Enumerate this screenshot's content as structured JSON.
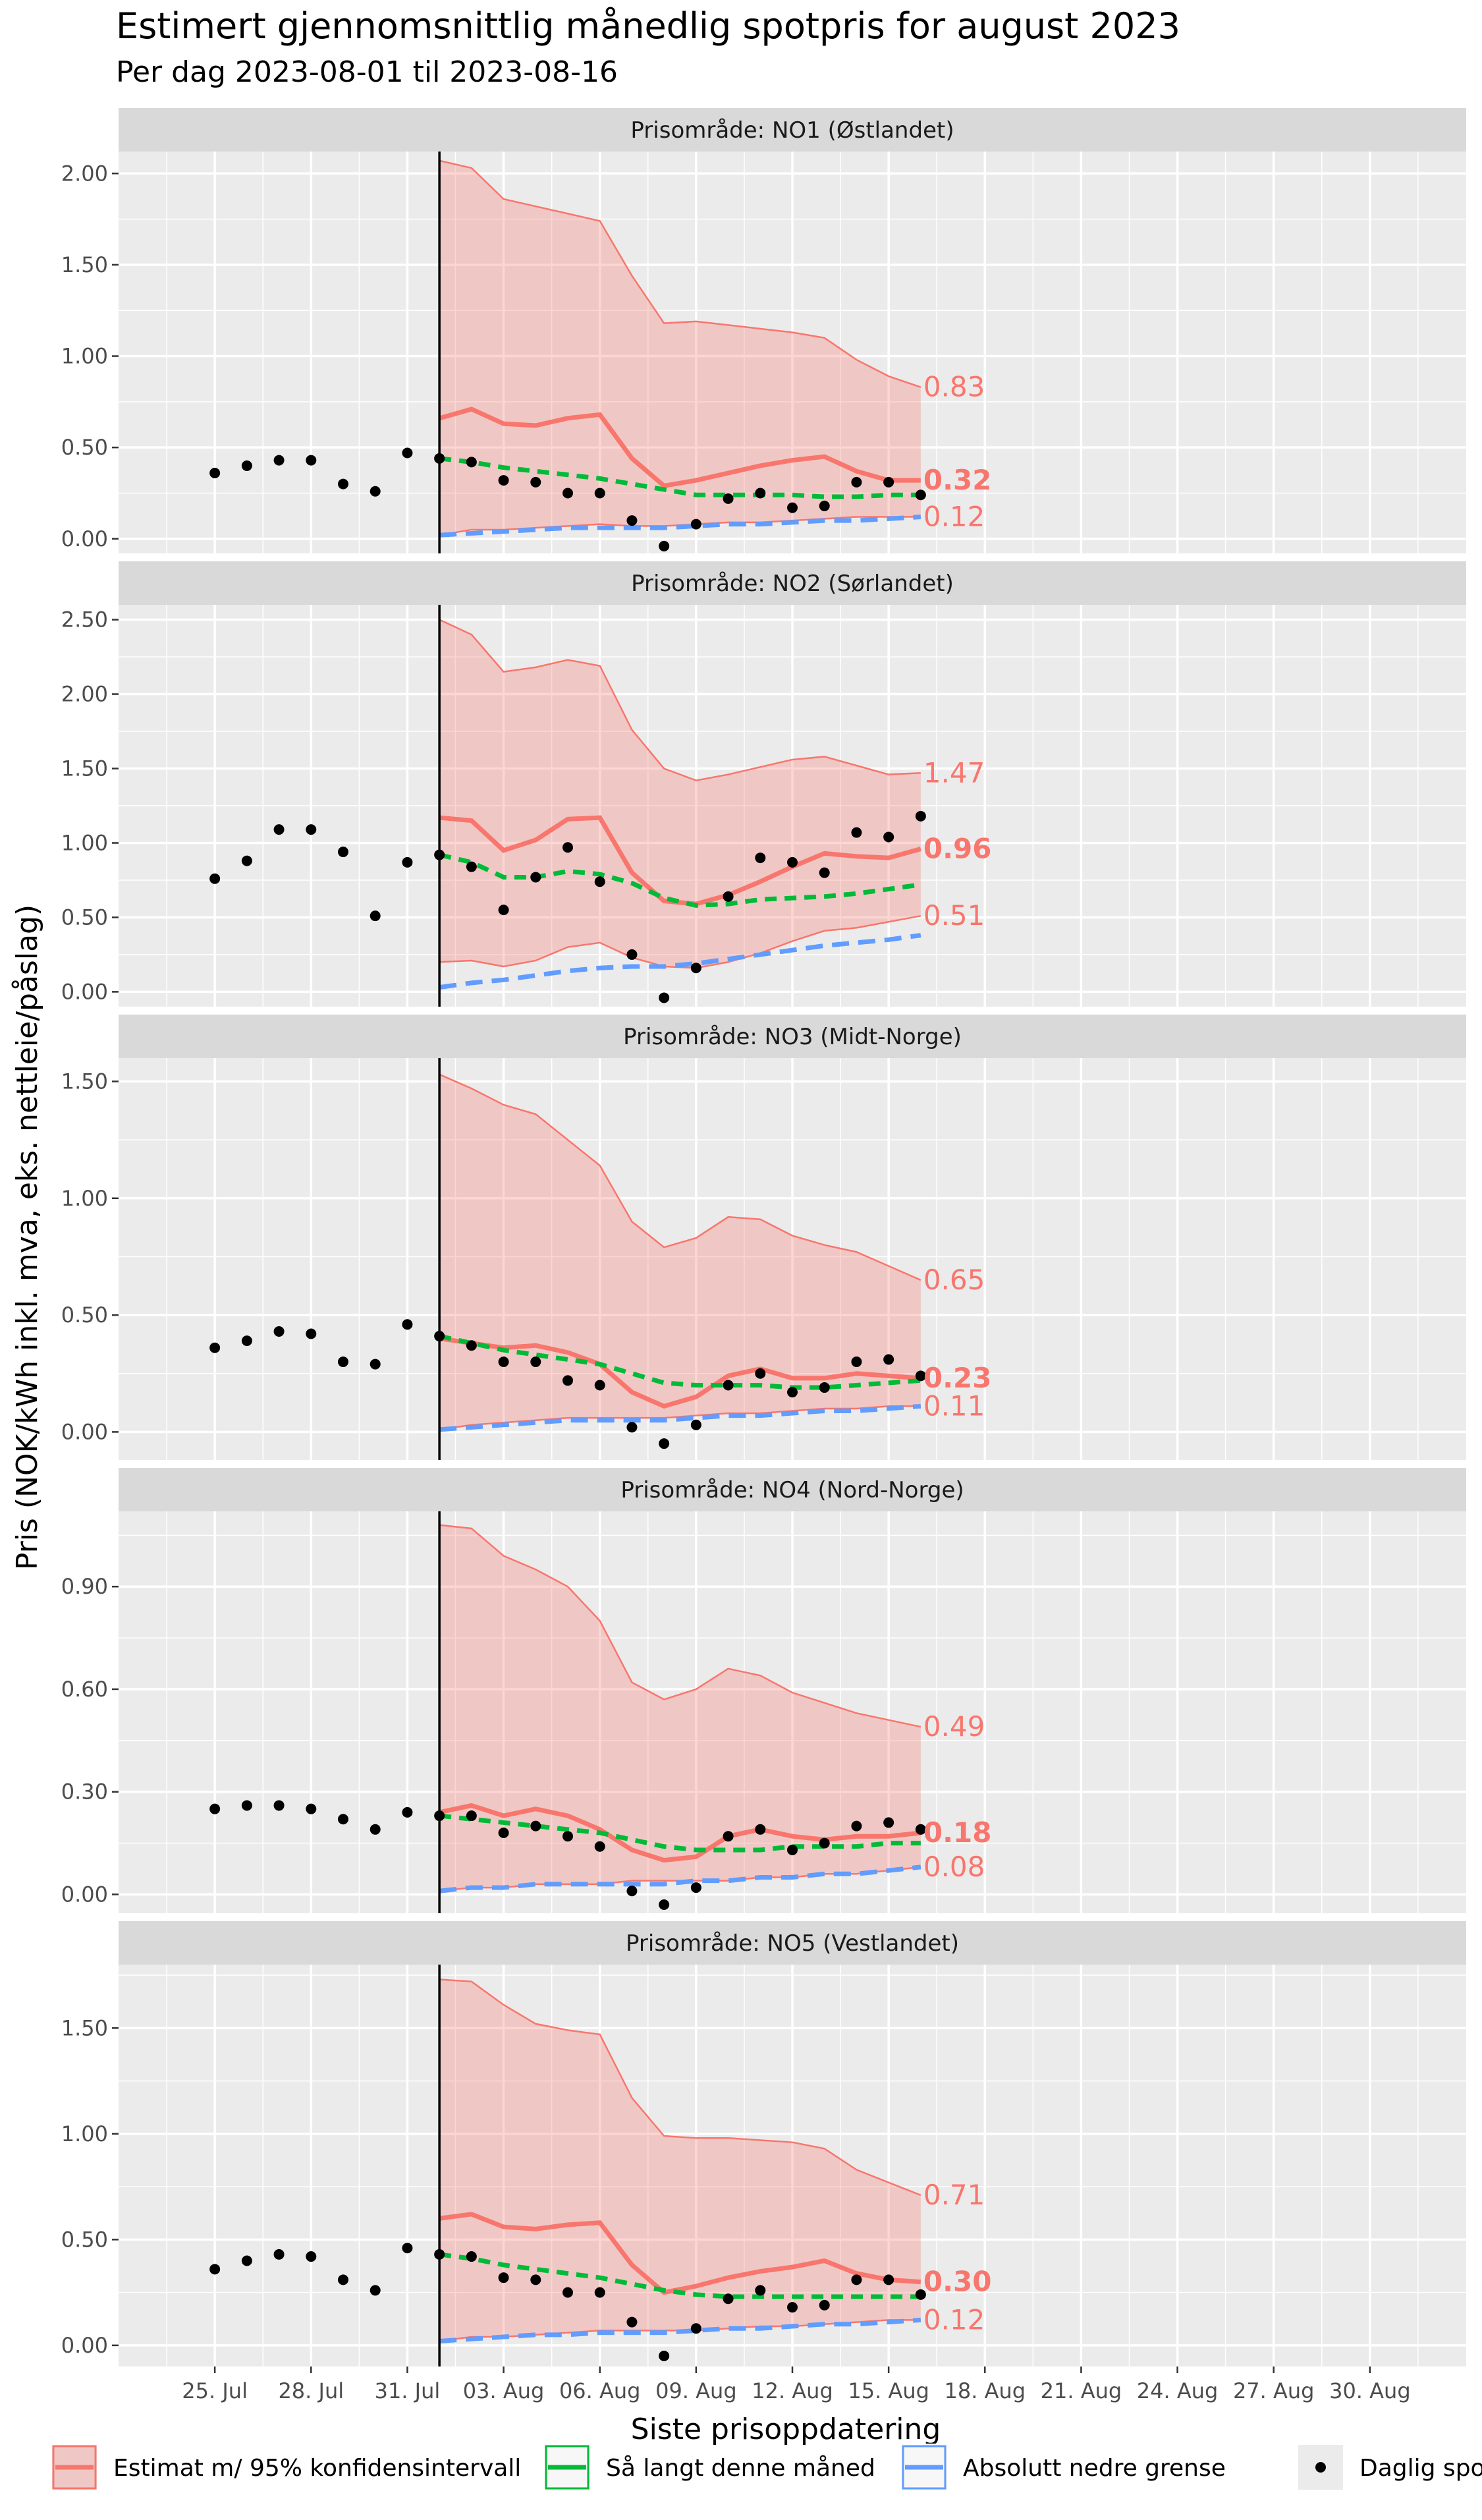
{
  "title": "Estimert gjennomsnittlig månedlig spotpris for august 2023",
  "subtitle": "Per dag 2023-08-01 til 2023-08-16",
  "chart_data": {
    "type": "line",
    "xlabel": "Siste prisoppdatering",
    "ylabel": "Pris (NOK/kWh inkl. mva, eks. nettleie/påslag)",
    "x_range": [
      "2023-07-22",
      "2023-09-02"
    ],
    "x_ticks": [
      "25. Jul",
      "28. Jul",
      "31. Jul",
      "03. Aug",
      "06. Aug",
      "09. Aug",
      "12. Aug",
      "15. Aug",
      "18. Aug",
      "21. Aug",
      "24. Aug",
      "27. Aug",
      "30. Aug"
    ],
    "month_start_line": "2023-08-01",
    "legend": {
      "placement": "bottom",
      "entries": [
        {
          "label": "Estimat m/ 95% konfidensintervall",
          "color": "#F8766D"
        },
        {
          "label": "Så langt denne måned",
          "color": "#00BA38"
        },
        {
          "label": "Absolutt nedre grense",
          "color": "#619CFF"
        },
        {
          "label": "Daglig spotpris",
          "color": "#000000"
        }
      ]
    },
    "panels": [
      {
        "title": "Prisområde: NO1 (Østlandet)",
        "ylim": [
          -0.08,
          2.12
        ],
        "y_ticks": [
          0,
          0.5,
          1.0,
          1.5,
          2.0
        ],
        "y_tick_labels": [
          "0.00",
          "0.50",
          "1.00",
          "1.50",
          "2.00"
        ],
        "daily_prices": [
          0.36,
          0.4,
          0.43,
          0.43,
          0.3,
          0.26,
          0.47,
          0.44,
          0.42,
          0.32,
          0.31,
          0.25,
          0.25,
          0.1,
          -0.04,
          0.08,
          0.22,
          0.25,
          0.17,
          0.18,
          0.31,
          0.31,
          0.24
        ],
        "estimate": [
          0.66,
          0.71,
          0.63,
          0.62,
          0.66,
          0.68,
          0.44,
          0.29,
          0.32,
          0.36,
          0.4,
          0.43,
          0.45,
          0.37,
          0.32,
          0.32
        ],
        "ci_upper": [
          2.07,
          2.03,
          1.86,
          1.82,
          1.78,
          1.74,
          1.44,
          1.18,
          1.19,
          1.17,
          1.15,
          1.13,
          1.1,
          0.98,
          0.89,
          0.83
        ],
        "ci_lower": [
          0.02,
          0.05,
          0.05,
          0.06,
          0.07,
          0.08,
          0.07,
          0.07,
          0.08,
          0.09,
          0.09,
          0.1,
          0.11,
          0.12,
          0.12,
          0.12
        ],
        "so_far": [
          0.44,
          0.42,
          0.39,
          0.37,
          0.35,
          0.33,
          0.3,
          0.27,
          0.24,
          0.24,
          0.24,
          0.24,
          0.23,
          0.23,
          0.24,
          0.24
        ],
        "lower_bound": [
          0.02,
          0.03,
          0.04,
          0.05,
          0.06,
          0.06,
          0.06,
          0.06,
          0.07,
          0.08,
          0.08,
          0.09,
          0.1,
          0.1,
          0.11,
          0.12
        ],
        "labels": {
          "upper": "0.83",
          "estimate": "0.32",
          "lower": "0.12"
        }
      },
      {
        "title": "Prisområde: NO2 (Sørlandet)",
        "ylim": [
          -0.1,
          2.6
        ],
        "y_ticks": [
          0,
          0.5,
          1.0,
          1.5,
          2.0,
          2.5
        ],
        "y_tick_labels": [
          "0.00",
          "0.50",
          "1.00",
          "1.50",
          "2.00",
          "2.50"
        ],
        "daily_prices": [
          0.76,
          0.88,
          1.09,
          1.09,
          0.94,
          0.51,
          0.87,
          0.92,
          0.84,
          0.55,
          0.77,
          0.97,
          0.74,
          0.25,
          -0.04,
          0.16,
          0.64,
          0.9,
          0.87,
          0.8,
          1.07,
          1.04,
          1.18
        ],
        "estimate": [
          1.17,
          1.15,
          0.95,
          1.02,
          1.16,
          1.17,
          0.8,
          0.61,
          0.59,
          0.65,
          0.74,
          0.84,
          0.93,
          0.91,
          0.9,
          0.96
        ],
        "ci_upper": [
          2.5,
          2.4,
          2.15,
          2.18,
          2.23,
          2.19,
          1.76,
          1.5,
          1.42,
          1.46,
          1.51,
          1.56,
          1.58,
          1.52,
          1.46,
          1.47
        ],
        "ci_lower": [
          0.2,
          0.21,
          0.17,
          0.21,
          0.3,
          0.33,
          0.23,
          0.17,
          0.16,
          0.2,
          0.26,
          0.34,
          0.41,
          0.43,
          0.47,
          0.51
        ],
        "so_far": [
          0.92,
          0.87,
          0.77,
          0.77,
          0.81,
          0.79,
          0.73,
          0.63,
          0.58,
          0.59,
          0.62,
          0.63,
          0.64,
          0.66,
          0.69,
          0.72
        ],
        "lower_bound": [
          0.03,
          0.06,
          0.08,
          0.11,
          0.14,
          0.16,
          0.17,
          0.17,
          0.19,
          0.22,
          0.25,
          0.28,
          0.31,
          0.33,
          0.35,
          0.38
        ],
        "labels": {
          "upper": "1.47",
          "estimate": "0.96",
          "lower": "0.51"
        }
      },
      {
        "title": "Prisområde: NO3 (Midt-Norge)",
        "ylim": [
          -0.12,
          1.6
        ],
        "y_ticks": [
          0,
          0.5,
          1.0,
          1.5
        ],
        "y_tick_labels": [
          "0.00",
          "0.50",
          "1.00",
          "1.50"
        ],
        "daily_prices": [
          0.36,
          0.39,
          0.43,
          0.42,
          0.3,
          0.29,
          0.46,
          0.41,
          0.37,
          0.3,
          0.3,
          0.22,
          0.2,
          0.02,
          -0.05,
          0.03,
          0.2,
          0.25,
          0.17,
          0.19,
          0.3,
          0.31,
          0.24
        ],
        "estimate": [
          0.4,
          0.38,
          0.36,
          0.37,
          0.34,
          0.29,
          0.17,
          0.11,
          0.15,
          0.24,
          0.27,
          0.23,
          0.23,
          0.25,
          0.24,
          0.23
        ],
        "ci_upper": [
          1.53,
          1.47,
          1.4,
          1.36,
          1.25,
          1.14,
          0.9,
          0.79,
          0.83,
          0.92,
          0.91,
          0.84,
          0.8,
          0.77,
          0.71,
          0.65
        ],
        "ci_lower": [
          0.01,
          0.03,
          0.04,
          0.05,
          0.06,
          0.06,
          0.06,
          0.06,
          0.07,
          0.08,
          0.08,
          0.09,
          0.1,
          0.1,
          0.11,
          0.11
        ],
        "so_far": [
          0.41,
          0.38,
          0.35,
          0.33,
          0.31,
          0.29,
          0.25,
          0.21,
          0.2,
          0.2,
          0.2,
          0.19,
          0.19,
          0.2,
          0.21,
          0.22
        ],
        "lower_bound": [
          0.01,
          0.02,
          0.03,
          0.04,
          0.05,
          0.05,
          0.05,
          0.05,
          0.06,
          0.07,
          0.07,
          0.08,
          0.09,
          0.09,
          0.1,
          0.11
        ],
        "labels": {
          "upper": "0.65",
          "estimate": "0.23",
          "lower": "0.11"
        }
      },
      {
        "title": "Prisområde: NO4 (Nord-Norge)",
        "ylim": [
          -0.055,
          1.12
        ],
        "y_ticks": [
          0,
          0.3,
          0.6,
          0.9
        ],
        "y_tick_labels": [
          "0.00",
          "0.30",
          "0.60",
          "0.90"
        ],
        "daily_prices": [
          0.25,
          0.26,
          0.26,
          0.25,
          0.22,
          0.19,
          0.24,
          0.23,
          0.23,
          0.18,
          0.2,
          0.17,
          0.14,
          0.01,
          -0.03,
          0.02,
          0.17,
          0.19,
          0.13,
          0.15,
          0.2,
          0.21,
          0.19
        ],
        "estimate": [
          0.24,
          0.26,
          0.23,
          0.25,
          0.23,
          0.19,
          0.13,
          0.1,
          0.11,
          0.17,
          0.19,
          0.17,
          0.16,
          0.17,
          0.17,
          0.18
        ],
        "ci_upper": [
          1.08,
          1.07,
          0.99,
          0.95,
          0.9,
          0.8,
          0.62,
          0.57,
          0.6,
          0.66,
          0.64,
          0.59,
          0.56,
          0.53,
          0.51,
          0.49
        ],
        "ci_lower": [
          0.01,
          0.02,
          0.02,
          0.03,
          0.03,
          0.03,
          0.04,
          0.04,
          0.04,
          0.04,
          0.05,
          0.05,
          0.06,
          0.06,
          0.07,
          0.08
        ],
        "so_far": [
          0.23,
          0.22,
          0.21,
          0.2,
          0.19,
          0.18,
          0.16,
          0.14,
          0.13,
          0.13,
          0.13,
          0.14,
          0.14,
          0.14,
          0.15,
          0.15
        ],
        "lower_bound": [
          0.01,
          0.02,
          0.02,
          0.03,
          0.03,
          0.03,
          0.03,
          0.03,
          0.04,
          0.04,
          0.05,
          0.05,
          0.06,
          0.06,
          0.07,
          0.08
        ],
        "labels": {
          "upper": "0.49",
          "estimate": "0.18",
          "lower": "0.08"
        }
      },
      {
        "title": "Prisområde: NO5 (Vestlandet)",
        "ylim": [
          -0.1,
          1.8
        ],
        "y_ticks": [
          0,
          0.5,
          1.0,
          1.5
        ],
        "y_tick_labels": [
          "0.00",
          "0.50",
          "1.00",
          "1.50"
        ],
        "daily_prices": [
          0.36,
          0.4,
          0.43,
          0.42,
          0.31,
          0.26,
          0.46,
          0.43,
          0.42,
          0.32,
          0.31,
          0.25,
          0.25,
          0.11,
          -0.05,
          0.08,
          0.22,
          0.26,
          0.18,
          0.19,
          0.31,
          0.31,
          0.24
        ],
        "estimate": [
          0.6,
          0.62,
          0.56,
          0.55,
          0.57,
          0.58,
          0.38,
          0.25,
          0.28,
          0.32,
          0.35,
          0.37,
          0.4,
          0.34,
          0.31,
          0.3
        ],
        "ci_upper": [
          1.73,
          1.72,
          1.61,
          1.52,
          1.49,
          1.47,
          1.17,
          0.99,
          0.98,
          0.98,
          0.97,
          0.96,
          0.93,
          0.83,
          0.77,
          0.71
        ],
        "ci_lower": [
          0.02,
          0.04,
          0.04,
          0.05,
          0.06,
          0.07,
          0.07,
          0.07,
          0.07,
          0.08,
          0.09,
          0.09,
          0.1,
          0.11,
          0.12,
          0.12
        ],
        "so_far": [
          0.43,
          0.41,
          0.38,
          0.36,
          0.34,
          0.32,
          0.29,
          0.26,
          0.24,
          0.23,
          0.23,
          0.23,
          0.23,
          0.23,
          0.23,
          0.23
        ],
        "lower_bound": [
          0.02,
          0.03,
          0.04,
          0.05,
          0.05,
          0.06,
          0.06,
          0.06,
          0.07,
          0.08,
          0.08,
          0.09,
          0.1,
          0.1,
          0.11,
          0.12
        ],
        "labels": {
          "upper": "0.71",
          "estimate": "0.30",
          "lower": "0.12"
        }
      }
    ]
  }
}
